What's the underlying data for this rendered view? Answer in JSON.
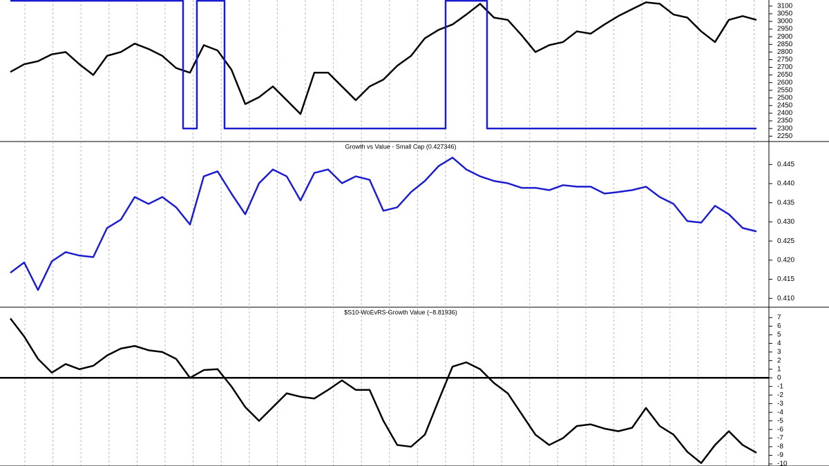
{
  "chart_data": [
    {
      "type": "line",
      "ylim": [
        2215,
        3140
      ],
      "yticks": [
        2250,
        2300,
        2350,
        2400,
        2450,
        2500,
        2550,
        2600,
        2650,
        2700,
        2750,
        2800,
        2850,
        2900,
        2950,
        3000,
        3050,
        3100
      ],
      "grid": true,
      "series": [
        {
          "color": "#000000",
          "values": [
            2670,
            2720,
            2740,
            2785,
            2800,
            2720,
            2650,
            2775,
            2800,
            2855,
            2820,
            2775,
            2695,
            2665,
            2845,
            2810,
            2685,
            2460,
            2505,
            2575,
            2485,
            2395,
            2665,
            2665,
            2575,
            2485,
            2575,
            2620,
            2710,
            2775,
            2890,
            2945,
            2980,
            3045,
            3115,
            3025,
            3010,
            2910,
            2800,
            2845,
            2865,
            2935,
            2920,
            2980,
            3035,
            3080,
            3125,
            3115,
            3045,
            3025,
            2935,
            2865,
            3010,
            3035,
            3010
          ]
        },
        {
          "color": "#1c1ccf",
          "step": true,
          "values": [
            3135,
            3135,
            3135,
            3135,
            3135,
            3135,
            3135,
            3135,
            3135,
            3135,
            3135,
            3135,
            3135,
            2300,
            3135,
            3135,
            2300,
            2300,
            2300,
            2300,
            2300,
            2300,
            2300,
            2300,
            2300,
            2300,
            2300,
            2300,
            2300,
            2300,
            2300,
            2300,
            3135,
            3135,
            3135,
            2300,
            2300,
            2300,
            2300,
            2300,
            2300,
            2300,
            2300,
            2300,
            2300,
            2300,
            2300,
            2300,
            2300,
            2300,
            2300,
            2300,
            2300,
            2300,
            2300
          ]
        }
      ]
    },
    {
      "type": "line",
      "title": "Growth vs Value - Small Cap (0.427346)",
      "ylim": [
        0.4077,
        0.451
      ],
      "yticks": [
        {
          "value": 0.41,
          "label": "0.410"
        },
        0.415,
        {
          "value": 0.42,
          "label": "0.420"
        },
        0.425,
        {
          "value": 0.43,
          "label": "0.430"
        },
        0.435,
        {
          "value": 0.44,
          "label": "0.440"
        },
        0.445
      ],
      "grid": true,
      "series": [
        {
          "color": "#1c1ccf",
          "values": [
            0.4167,
            0.4194,
            0.4122,
            0.4197,
            0.4221,
            0.4212,
            0.4208,
            0.4284,
            0.4306,
            0.4365,
            0.4347,
            0.4365,
            0.4338,
            0.4293,
            0.4419,
            0.4432,
            0.4374,
            0.432,
            0.4401,
            0.4437,
            0.4419,
            0.4356,
            0.4428,
            0.4437,
            0.4401,
            0.4419,
            0.441,
            0.4329,
            0.4338,
            0.4378,
            0.4407,
            0.4446,
            0.4468,
            0.4437,
            0.4419,
            0.4407,
            0.4401,
            0.4389,
            0.4389,
            0.4383,
            0.4396,
            0.4392,
            0.4392,
            0.4374,
            0.4378,
            0.4383,
            0.4392,
            0.4365,
            0.4347,
            0.4302,
            0.4298,
            0.4342,
            0.432,
            0.4284,
            0.4275
          ]
        }
      ]
    },
    {
      "type": "line",
      "title": "$S10-WoEvRS-Growth Value (−8.81936)",
      "ylim": [
        -10.24,
        8.2
      ],
      "yticks": [
        -10,
        -9,
        -8,
        -7,
        -6,
        -5,
        -4,
        -3,
        -2,
        -1,
        0,
        1,
        2,
        3,
        4,
        5,
        6,
        7
      ],
      "grid": true,
      "zero_line": true,
      "series": [
        {
          "color": "#000000",
          "values": [
            6.9,
            4.8,
            2.2,
            0.6,
            1.6,
            1.0,
            1.4,
            2.6,
            3.4,
            3.7,
            3.2,
            3.0,
            2.2,
            0,
            0.9,
            1.0,
            -1.0,
            -3.4,
            -5.0,
            -3.4,
            -1.8,
            -2.2,
            -2.4,
            -1.4,
            -0.3,
            -1.4,
            -1.4,
            -5.0,
            -7.8,
            -8.0,
            -6.6,
            -2.6,
            1.3,
            1.8,
            1.0,
            -0.6,
            -1.8,
            -4.2,
            -6.6,
            -7.8,
            -7.0,
            -5.6,
            -5.4,
            -5.9,
            -6.2,
            -5.8,
            -3.5,
            -5.6,
            -6.6,
            -8.6,
            -9.9,
            -7.8,
            -6.2,
            -7.8,
            -8.7
          ]
        }
      ]
    }
  ]
}
